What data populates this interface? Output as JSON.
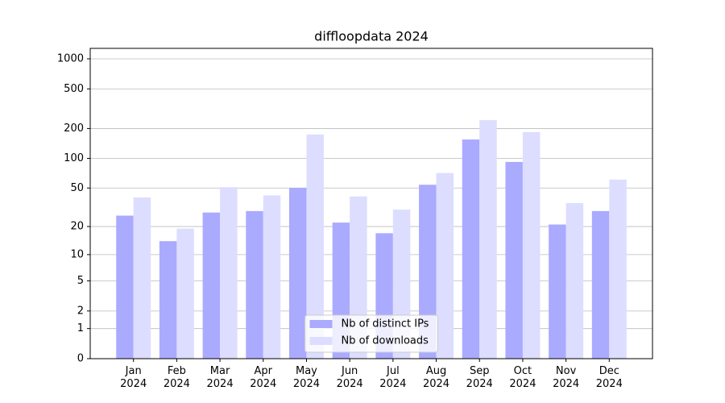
{
  "chart_data": {
    "type": "bar",
    "title": "diffloopdata 2024",
    "yscale": "log1p",
    "categories": [
      "Jan\n2024",
      "Feb\n2024",
      "Mar\n2024",
      "Apr\n2024",
      "May\n2024",
      "Jun\n2024",
      "Jul\n2024",
      "Aug\n2024",
      "Sep\n2024",
      "Oct\n2024",
      "Nov\n2024",
      "Dec\n2024"
    ],
    "series": [
      {
        "name": "Nb of distinct IPs",
        "color": "#aaaaff",
        "values": [
          26,
          14,
          28,
          29,
          50,
          22,
          17,
          54,
          155,
          92,
          21,
          29
        ]
      },
      {
        "name": "Nb of downloads",
        "color": "#ddddff",
        "values": [
          40,
          19,
          51,
          42,
          174,
          41,
          30,
          71,
          243,
          184,
          35,
          61
        ]
      }
    ],
    "ylim": [
      0,
      1273
    ],
    "yticks": [
      0,
      1,
      2,
      5,
      10,
      20,
      50,
      100,
      200,
      500,
      1000
    ],
    "grid": true,
    "legend": "lower center"
  }
}
